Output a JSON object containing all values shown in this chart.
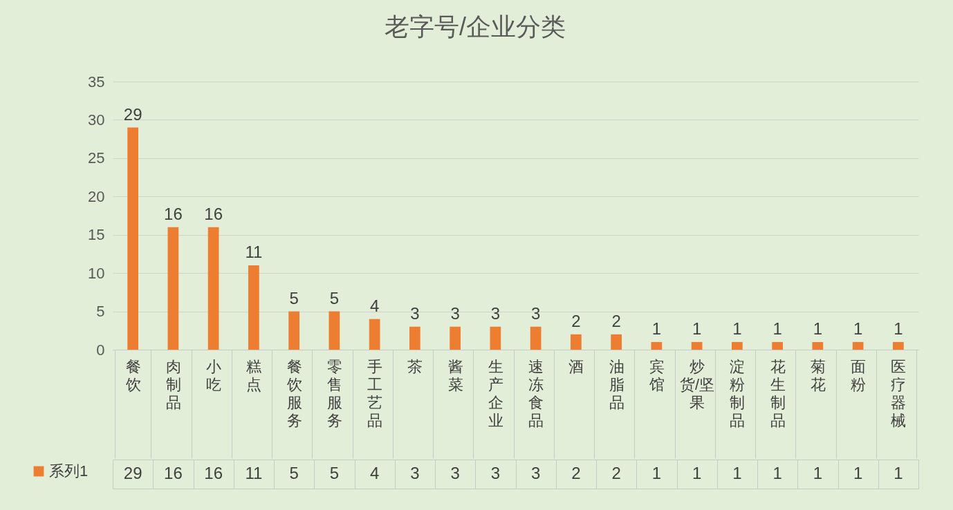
{
  "chart_data": {
    "type": "bar",
    "title": "老字号/企业分类",
    "categories": [
      "餐饮",
      "肉制品",
      "小吃",
      "糕点",
      "餐饮服务",
      "零售服务",
      "手工艺品",
      "茶",
      "酱菜",
      "生产企业",
      "速冻食品",
      "酒",
      "油脂品",
      "宾馆",
      "炒货/坚果",
      "淀粉制品",
      "花生制品",
      "菊花",
      "面粉",
      "医疗器械"
    ],
    "series": [
      {
        "name": "系列1",
        "color": "#ed7d31",
        "values": [
          29,
          16,
          16,
          11,
          5,
          5,
          4,
          3,
          3,
          3,
          3,
          2,
          2,
          1,
          1,
          1,
          1,
          1,
          1,
          1
        ]
      }
    ],
    "annotations": [
      "29",
      "16",
      "16",
      "11",
      "5",
      "5",
      "4",
      "3",
      "3",
      "3",
      "3",
      "2",
      "2",
      "1",
      "1",
      "1",
      "1",
      "1",
      "1",
      "1"
    ],
    "ylim": [
      0,
      35
    ],
    "yticks": [
      0,
      5,
      10,
      15,
      20,
      25,
      30,
      35
    ],
    "grid": "y",
    "data_labels": true,
    "legend": "bottom"
  }
}
